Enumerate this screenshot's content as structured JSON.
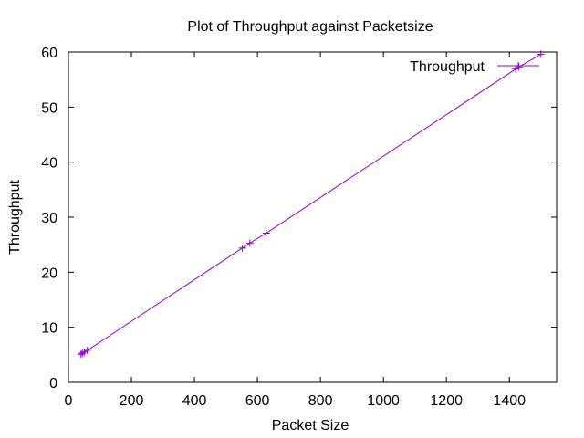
{
  "chart_data": {
    "type": "line",
    "title": "Plot of Throughput against Packetsize",
    "xlabel": "Packet Size",
    "ylabel": "Throughput",
    "xlim": [
      0,
      1550
    ],
    "ylim": [
      0,
      60
    ],
    "xticks": [
      0,
      200,
      400,
      600,
      800,
      1000,
      1200,
      1400
    ],
    "yticks": [
      0,
      10,
      20,
      30,
      40,
      50,
      60
    ],
    "grid": false,
    "legend_position": "top-right",
    "series": [
      {
        "name": "Throughput",
        "color": "#9400d3",
        "marker": "plus",
        "x": [
          40,
          44,
          50,
          60,
          552,
          576,
          628,
          1420,
          1430,
          1500
        ],
        "y": [
          5.1,
          5.3,
          5.5,
          5.8,
          24.4,
          25.3,
          27.1,
          56.9,
          57.3,
          59.6
        ]
      }
    ]
  }
}
